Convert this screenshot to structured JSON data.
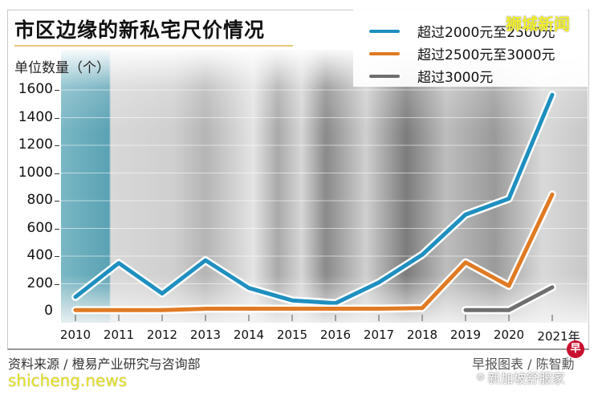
{
  "title": "市区边缘的新私宅尺价情况",
  "watermark_top": "狮城新闻",
  "footer": {
    "source": "资料来源 / 橙易产业研究与咨询部",
    "credit": "早报图表 / 陈智勳",
    "site": "shicheng.news",
    "wechat": "新加坡舒服家",
    "logo_char": "早"
  },
  "chart_data": {
    "type": "line",
    "title": "市区边缘的新私宅尺价情况",
    "ylabel": "单位数量（个）",
    "xlabel": "",
    "x": [
      "2010",
      "2011",
      "2012",
      "2013",
      "2014",
      "2015",
      "2016",
      "2017",
      "2018",
      "2019",
      "2020",
      "2021年"
    ],
    "yticks": [
      "1600",
      "1400",
      "1200",
      "1000",
      "800",
      "600",
      "400",
      "200",
      "0"
    ],
    "ylim": [
      0,
      1600
    ],
    "grid": true,
    "legend_position": "top-right",
    "series": [
      {
        "name": "超过2000元至2500元",
        "color": "#1f8fc0",
        "values": [
          105,
          350,
          130,
          370,
          170,
          80,
          60,
          210,
          410,
          700,
          815,
          1565
        ]
      },
      {
        "name": "超过2500元至3000元",
        "color": "#e07a24",
        "values": [
          10,
          10,
          10,
          20,
          20,
          20,
          20,
          20,
          25,
          355,
          185,
          845
        ]
      },
      {
        "name": "超过3000元",
        "color": "#6f6f6f",
        "values": [
          null,
          null,
          null,
          null,
          null,
          null,
          null,
          null,
          null,
          10,
          10,
          175
        ]
      }
    ]
  }
}
